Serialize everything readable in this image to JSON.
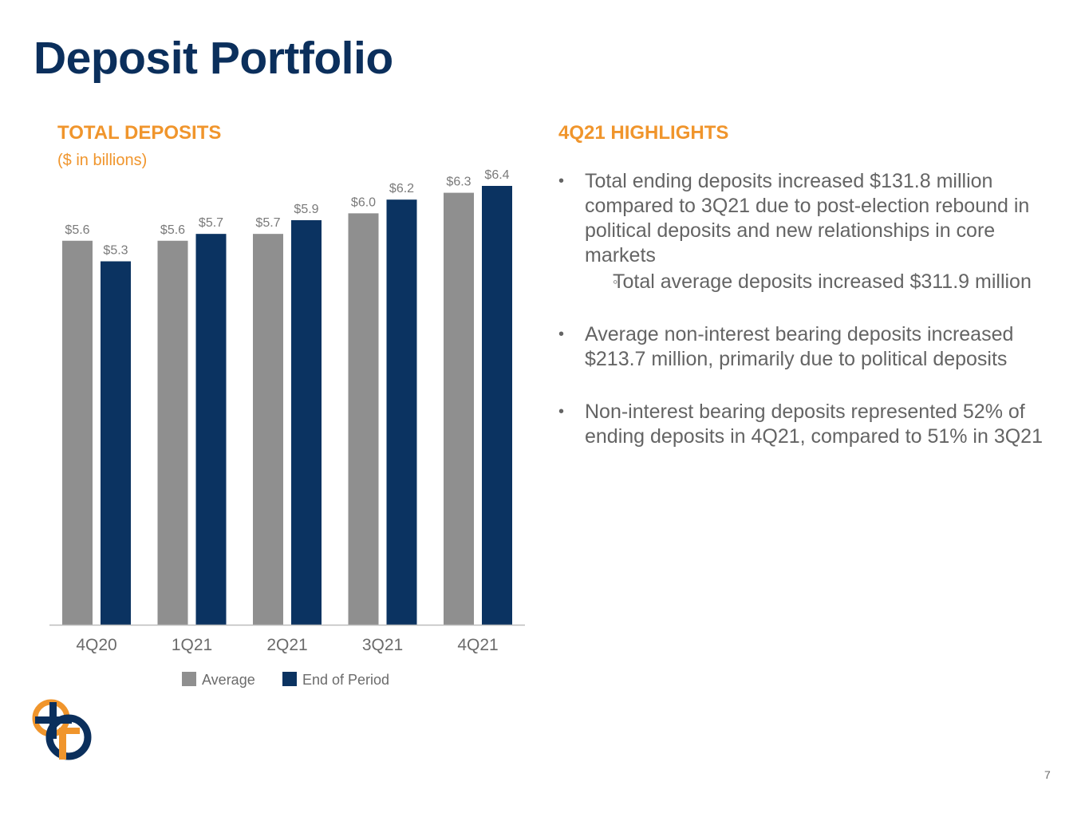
{
  "page": {
    "title": "Deposit Portfolio",
    "page_number": "7"
  },
  "highlights": {
    "title": "4Q21 HIGHLIGHTS",
    "bullets": [
      {
        "text": "Total ending deposits increased $131.8 million compared to 3Q21 due to post-election rebound in political deposits and new relationships in core markets",
        "sub": "Total average deposits increased $311.9 million"
      },
      {
        "text": "Average non-interest bearing deposits increased $213.7 million, primarily due to political deposits"
      },
      {
        "text": "Non-interest bearing deposits represented 52% of ending deposits in 4Q21, compared to 51% in 3Q21"
      }
    ],
    "bullet_symbol": "•",
    "sub_bullet_symbol": "◦"
  },
  "chart_data": {
    "type": "bar",
    "title": "TOTAL DEPOSITS",
    "subtitle": "($ in billions)",
    "categories": [
      "4Q20",
      "1Q21",
      "2Q21",
      "3Q21",
      "4Q21"
    ],
    "series": [
      {
        "name": "Average",
        "values": [
          5.6,
          5.6,
          5.7,
          6.0,
          6.3
        ],
        "labels": [
          "$5.6",
          "$5.6",
          "$5.7",
          "$6.0",
          "$6.3"
        ],
        "color": "#8f8f8f"
      },
      {
        "name": "End of Period",
        "values": [
          5.3,
          5.7,
          5.9,
          6.2,
          6.4
        ],
        "labels": [
          "$5.3",
          "$5.7",
          "$5.9",
          "$6.2",
          "$6.4"
        ],
        "color": "#0b3361"
      }
    ],
    "legend": "bottom",
    "grid": false
  },
  "colors": {
    "title": "#0b2f5c",
    "accent": "#f0952c",
    "text": "#646464"
  }
}
